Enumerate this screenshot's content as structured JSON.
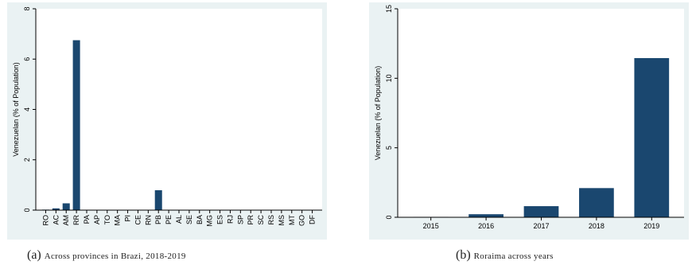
{
  "chart_data": [
    {
      "type": "bar",
      "ylabel": "Venezuelan (% of Population)",
      "xlabel": "",
      "ylim": [
        0,
        8
      ],
      "yticks": [
        0,
        2,
        4,
        6,
        8
      ],
      "categories": [
        "RO",
        "AC",
        "AM",
        "RR",
        "PA",
        "AP",
        "TO",
        "MA",
        "PI",
        "CE",
        "RN",
        "PB",
        "PE",
        "AL",
        "SE",
        "BA",
        "MG",
        "ES",
        "RJ",
        "SP",
        "PR",
        "SC",
        "RS",
        "MS",
        "MT",
        "GO",
        "DF"
      ],
      "values": [
        0.02,
        0.07,
        0.27,
        6.75,
        0.01,
        0.01,
        0.01,
        0.01,
        0.01,
        0.01,
        0.01,
        0.79,
        0.01,
        0.01,
        0.01,
        0.01,
        0.01,
        0.01,
        0.01,
        0.01,
        0.01,
        0.01,
        0.01,
        0.01,
        0.01,
        0.01,
        0.01
      ],
      "bar_color": "#1a476f",
      "grid": false
    },
    {
      "type": "bar",
      "ylabel": "Venezuelan (% of Population)",
      "xlabel": "",
      "ylim": [
        0,
        15
      ],
      "yticks": [
        0,
        5,
        10,
        15
      ],
      "categories": [
        "2015",
        "2016",
        "2017",
        "2018",
        "2019"
      ],
      "values": [
        0.03,
        0.22,
        0.8,
        2.1,
        11.45
      ],
      "bar_color": "#1a476f",
      "grid": false
    }
  ],
  "captions": {
    "a_label": "(a)",
    "a_text": "Across provinces in Brazi, 2018-2019",
    "b_label": "(b)",
    "b_text": "Roraima across years"
  }
}
